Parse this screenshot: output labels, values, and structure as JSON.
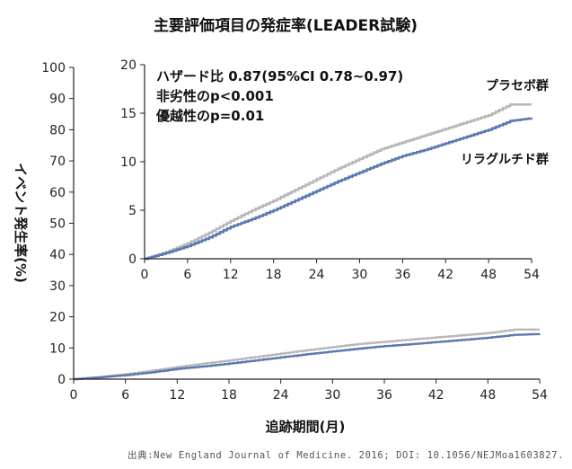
{
  "title": "主要評価項目の発症率(LEADER試験)",
  "source": "出典:New England Journal of Medicine. 2016; DOI: 10.1056/NEJMoa1603827.",
  "chart_data": [
    {
      "type": "line",
      "panel": "main",
      "xlabel": "追跡期間(月)",
      "ylabel": "イベント発生率(%)",
      "xlim": [
        0,
        54
      ],
      "ylim": [
        0,
        100
      ],
      "xticks": [
        0,
        6,
        12,
        18,
        24,
        30,
        36,
        42,
        48,
        54
      ],
      "yticks": [
        0,
        10,
        20,
        30,
        40,
        50,
        60,
        70,
        80,
        90,
        100
      ],
      "grid": false,
      "series": [
        {
          "name": "プラセボ群",
          "color": "#b8b8b8",
          "x": [
            0,
            3,
            6,
            9,
            12,
            15,
            18,
            21,
            24,
            27,
            30,
            33,
            36,
            39,
            42,
            45,
            48,
            51,
            54
          ],
          "y": [
            0,
            0.7,
            1.6,
            2.7,
            3.9,
            5.0,
            6.0,
            7.1,
            8.2,
            9.3,
            10.3,
            11.3,
            12.0,
            12.7,
            13.4,
            14.1,
            14.8,
            15.9,
            15.9
          ]
        },
        {
          "name": "リラグルチド群",
          "color": "#5b78b0",
          "x": [
            0,
            3,
            6,
            9,
            12,
            15,
            18,
            21,
            24,
            27,
            30,
            33,
            36,
            39,
            42,
            45,
            48,
            51,
            54
          ],
          "y": [
            0,
            0.6,
            1.3,
            2.2,
            3.3,
            4.1,
            5.0,
            6.0,
            7.0,
            8.0,
            8.9,
            9.8,
            10.6,
            11.2,
            11.9,
            12.6,
            13.3,
            14.2,
            14.5
          ]
        }
      ]
    },
    {
      "type": "line",
      "panel": "inset",
      "xlim": [
        0,
        54
      ],
      "ylim": [
        0,
        20
      ],
      "xticks": [
        0,
        6,
        12,
        18,
        24,
        30,
        36,
        42,
        48,
        54
      ],
      "yticks": [
        0,
        5,
        10,
        15,
        20
      ],
      "grid": false,
      "annotations": [
        "ハザード比 0.87(95%CI 0.78~0.97)",
        "非劣性のp<0.001",
        "優越性のp=0.01"
      ],
      "series": [
        {
          "name": "プラセボ群",
          "color": "#b8b8b8",
          "x": [
            0,
            3,
            6,
            9,
            12,
            15,
            18,
            21,
            24,
            27,
            30,
            33,
            36,
            39,
            42,
            45,
            48,
            51,
            54
          ],
          "y": [
            0,
            0.7,
            1.6,
            2.7,
            3.9,
            5.0,
            6.0,
            7.1,
            8.2,
            9.3,
            10.3,
            11.3,
            12.0,
            12.7,
            13.4,
            14.1,
            14.8,
            15.9,
            15.9
          ]
        },
        {
          "name": "リラグルチド群",
          "color": "#5b78b0",
          "x": [
            0,
            3,
            6,
            9,
            12,
            15,
            18,
            21,
            24,
            27,
            30,
            33,
            36,
            39,
            42,
            45,
            48,
            51,
            54
          ],
          "y": [
            0,
            0.6,
            1.3,
            2.2,
            3.3,
            4.1,
            5.0,
            6.0,
            7.0,
            8.0,
            8.9,
            9.8,
            10.6,
            11.2,
            11.9,
            12.6,
            13.3,
            14.2,
            14.5
          ]
        }
      ]
    }
  ]
}
